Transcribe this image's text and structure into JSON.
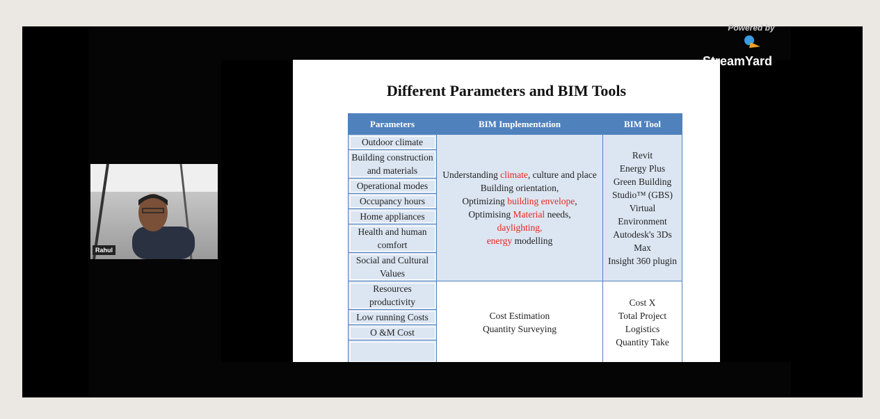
{
  "stream": {
    "powered_by": "Powered by",
    "brand": "StreamYard"
  },
  "participant": {
    "name": "Rahul"
  },
  "slide": {
    "title": "Different Parameters and BIM Tools",
    "headers": [
      "Parameters",
      "BIM Implementation",
      "BIM Tool"
    ],
    "groups": [
      {
        "parameters": [
          "Outdoor climate",
          "Building construction and materials",
          "Operational modes",
          "Occupancy hours",
          "Home appliances",
          "Health and human comfort",
          "Social and Cultural Values"
        ],
        "implementation": [
          [
            {
              "text": "Understanding "
            },
            {
              "text": "climate",
              "color": "#e8261c"
            },
            {
              "text": ", culture and place"
            }
          ],
          [
            {
              "text": "Building orientation,"
            }
          ],
          [
            {
              "text": "Optimizing "
            },
            {
              "text": "building envelope",
              "color": "#e8261c"
            },
            {
              "text": ","
            }
          ],
          [
            {
              "text": "Optimising "
            },
            {
              "text": "Material",
              "color": "#e8261c"
            },
            {
              "text": " needs,"
            }
          ],
          [
            {
              "text": "daylighting,",
              "color": "#e8261c"
            }
          ],
          [
            {
              "text": "energy",
              "color": "#e8261c"
            },
            {
              "text": " modelling"
            }
          ]
        ],
        "tools": [
          "Revit",
          "Energy Plus",
          "Green Building Studio™ (GBS)",
          "Virtual Environment",
          "Autodesk's 3Ds Max",
          "Insight 360 plugin"
        ]
      },
      {
        "parameters": [
          "Resources productivity",
          "Low running Costs",
          "O &M Cost"
        ],
        "implementation": [
          [
            {
              "text": "Cost Estimation"
            }
          ],
          [
            {
              "text": "Quantity Surveying"
            }
          ]
        ],
        "tools": [
          "Cost X",
          "Total Project Logistics",
          "Quantity Take"
        ]
      }
    ]
  }
}
